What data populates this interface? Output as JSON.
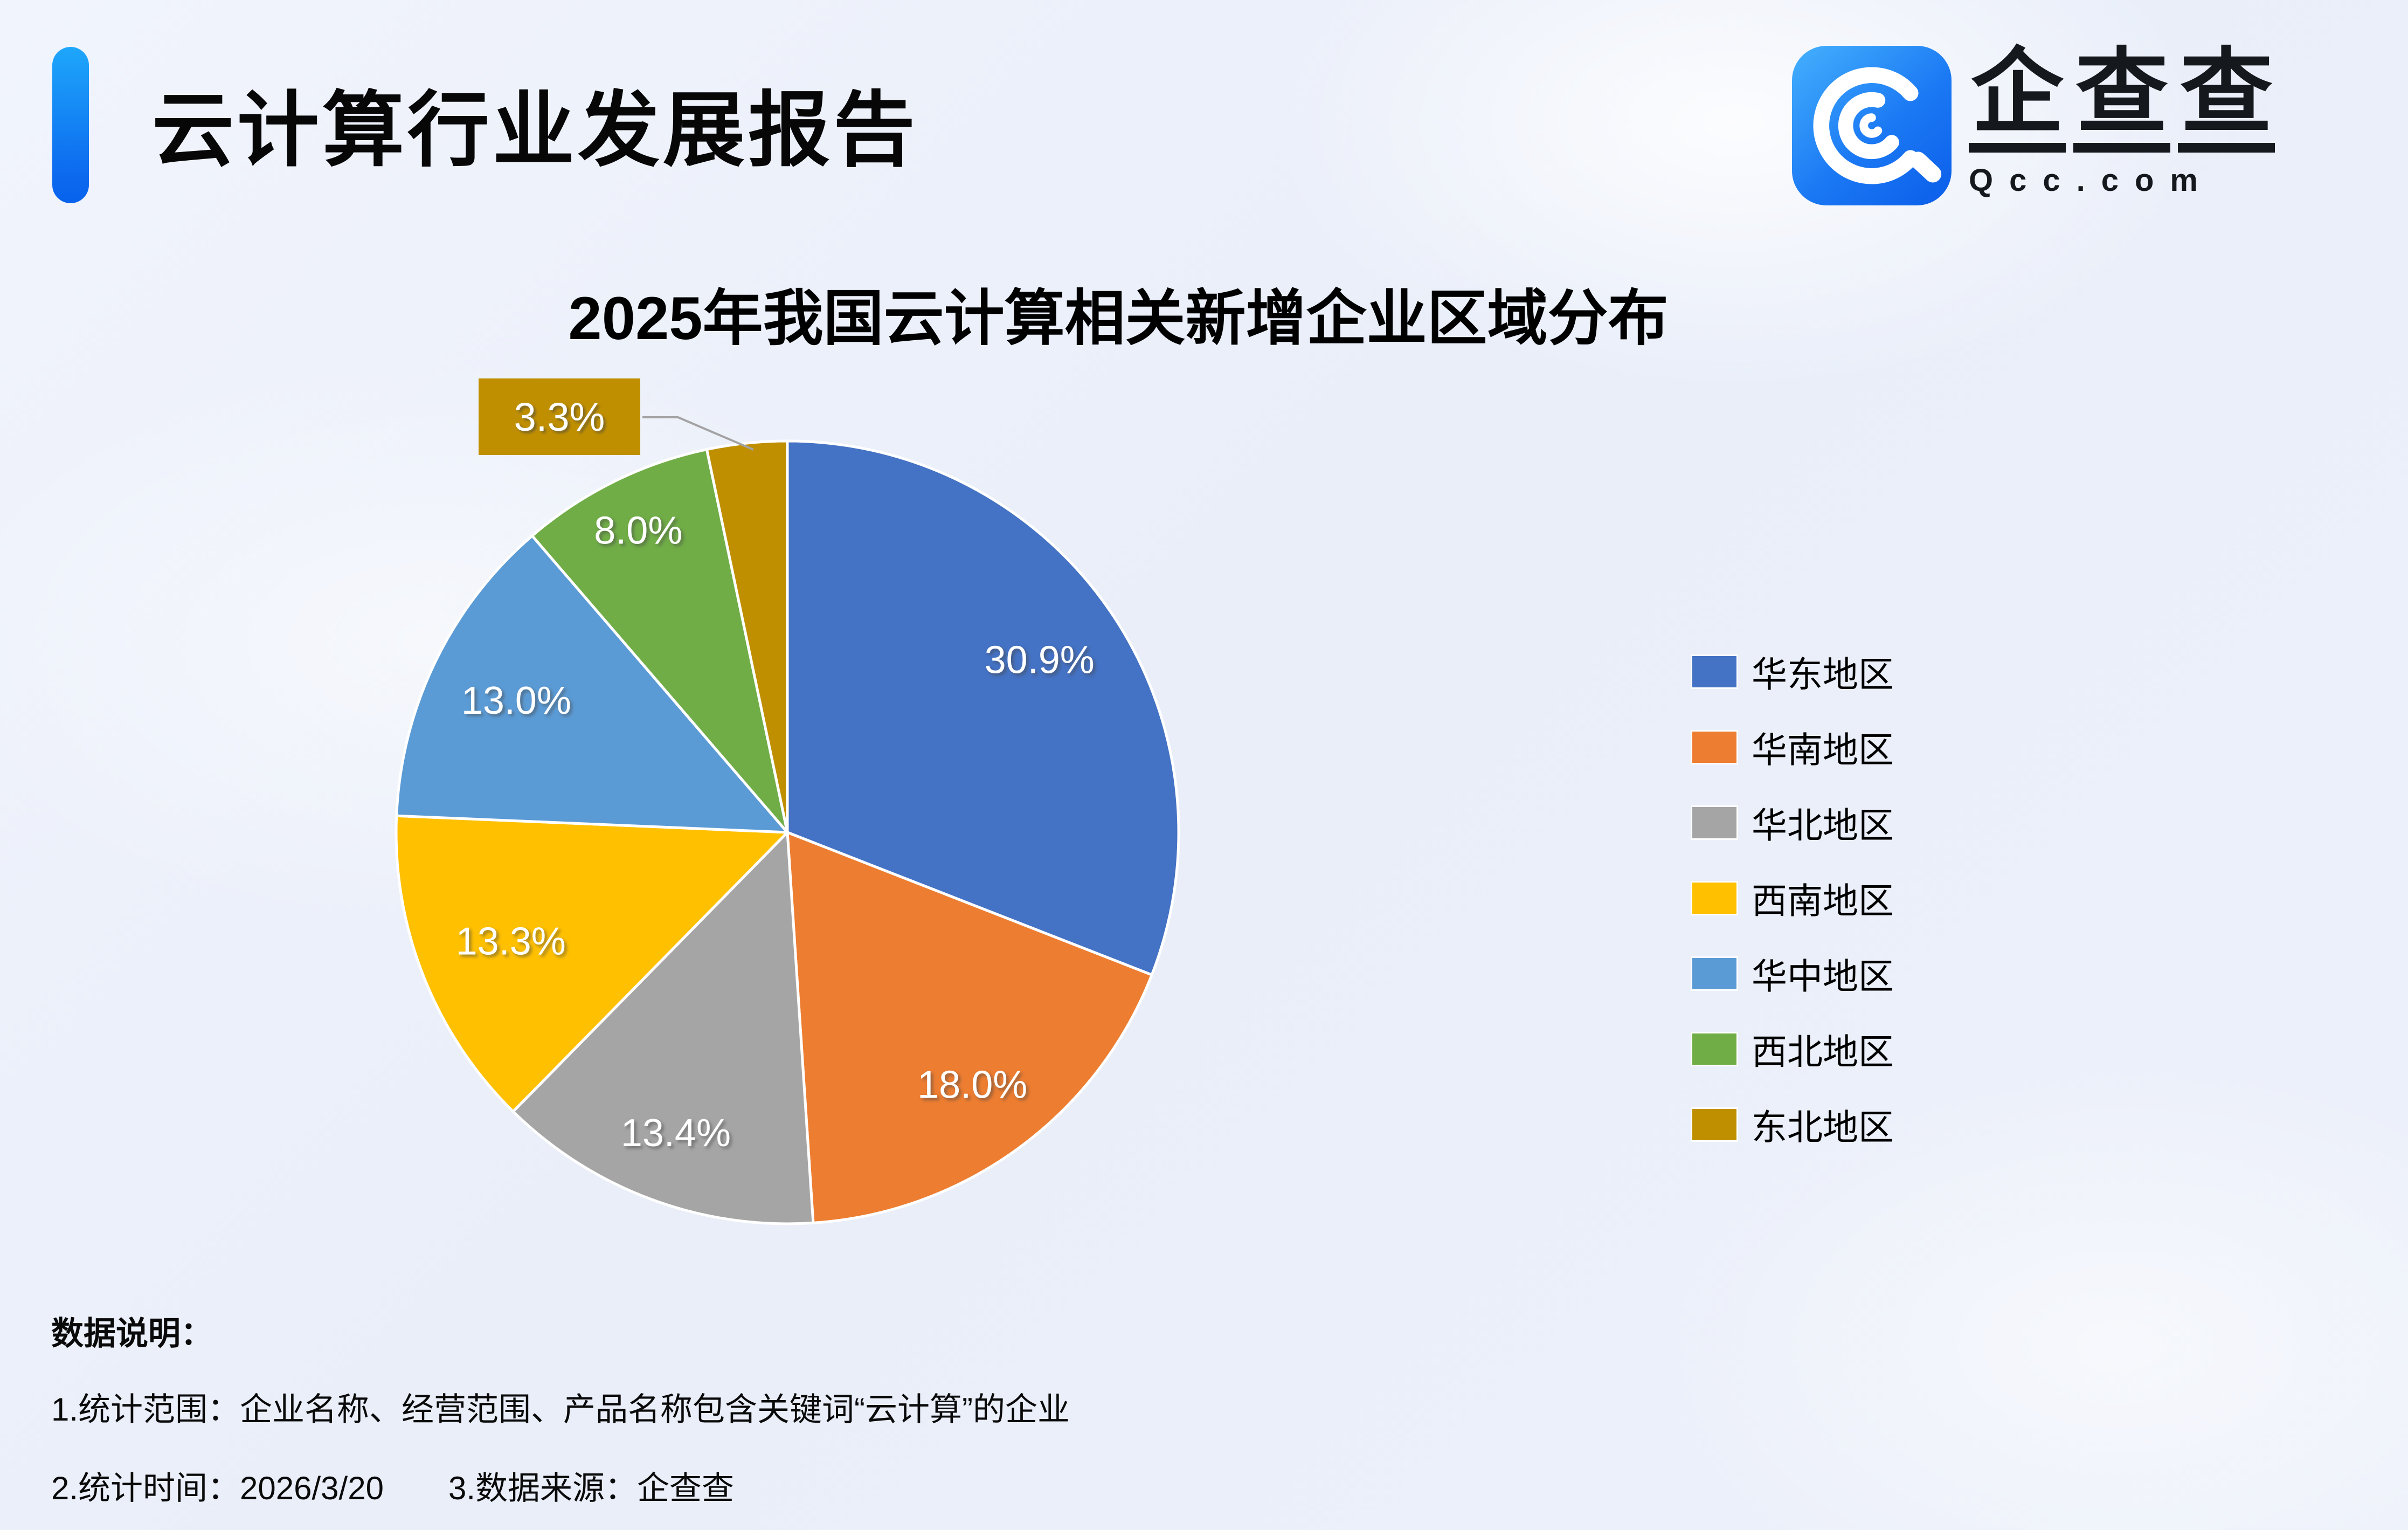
{
  "page": {
    "title": "云计算行业发展报告",
    "background_color": "#edf1fa",
    "accent_color": "#0d6bef"
  },
  "logo": {
    "brand_cn_chars": [
      "企",
      "查",
      "查"
    ],
    "brand_en": "Qcc.com",
    "icon": "qcc-spiral-q-icon",
    "icon_color": "#1b79f4"
  },
  "chart_data": {
    "type": "pie",
    "title": "2025年我国云计算相关新增企业区域分布",
    "unit": "%",
    "legend_position": "right",
    "start_angle_deg": 0,
    "direction": "clockwise",
    "items": [
      {
        "label": "华东地区",
        "value": 30.9,
        "color": "#4472C4"
      },
      {
        "label": "华南地区",
        "value": 18.0,
        "color": "#ED7D31"
      },
      {
        "label": "华北地区",
        "value": 13.4,
        "color": "#A5A5A5"
      },
      {
        "label": "西南地区",
        "value": 13.3,
        "color": "#FFC000"
      },
      {
        "label": "华中地区",
        "value": 13.0,
        "color": "#5B9BD5"
      },
      {
        "label": "西北地区",
        "value": 8.0,
        "color": "#70AD47"
      },
      {
        "label": "东北地区",
        "value": 3.3,
        "color": "#BF8F00"
      }
    ],
    "callout": {
      "text": "3.3%",
      "bg": "#BF8F00",
      "for_label": "东北地区"
    }
  },
  "notes": {
    "heading": "数据说明：",
    "line1": "1.统计范围：企业名称、经营范围、产品名称包含关键词“云计算”的企业",
    "line2a": "2.统计时间：2026/3/20",
    "line2b": "3.数据来源：企查查"
  }
}
